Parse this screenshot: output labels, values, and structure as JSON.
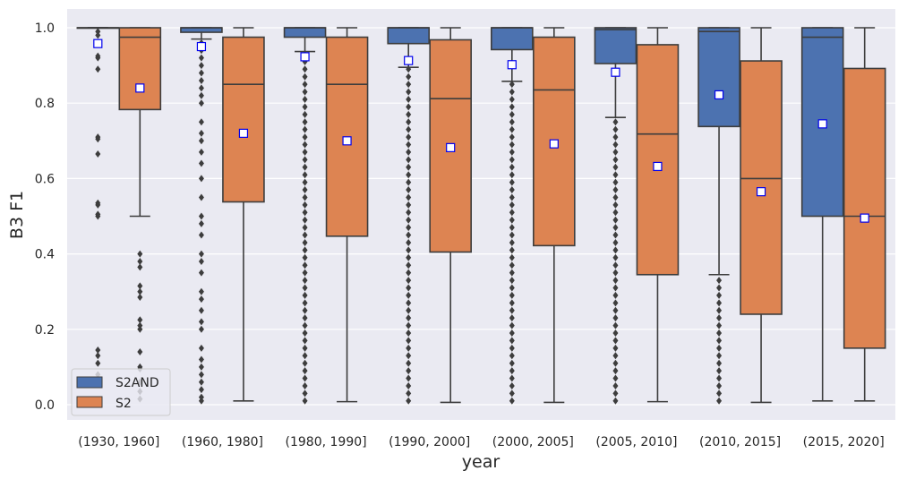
{
  "chart_data": {
    "type": "box",
    "xlabel": "year",
    "ylabel": "B3 F1",
    "ylim": [
      -0.04,
      1.04
    ],
    "yticks": [
      0.0,
      0.2,
      0.4,
      0.6,
      0.8,
      1.0
    ],
    "ytick_labels": [
      "0.0",
      "0.2",
      "0.4",
      "0.6",
      "0.8",
      "1.0"
    ],
    "grid": true,
    "legend_position": "lower-left",
    "categories": [
      "(1930, 1960]",
      "(1960, 1980]",
      "(1980, 1990]",
      "(1990, 2000]",
      "(2000, 2005]",
      "(2005, 2010]",
      "(2010, 2015]",
      "(2015, 2020]"
    ],
    "series": [
      {
        "name": "S2AND",
        "color": "#4c72b0",
        "boxes": [
          {
            "q1": 1.0,
            "median": 1.0,
            "q3": 1.0,
            "whisker_low": 1.0,
            "whisker_high": 1.0,
            "mean": 0.958,
            "outliers": [
              0.99,
              0.98,
              0.925,
              0.92,
              0.89,
              0.71,
              0.705,
              0.665,
              0.535,
              0.53,
              0.505,
              0.5,
              0.145,
              0.13,
              0.11,
              0.08
            ]
          },
          {
            "q1": 0.988,
            "median": 1.0,
            "q3": 1.0,
            "whisker_low": 0.97,
            "whisker_high": 1.0,
            "mean": 0.95,
            "outliers": [
              0.96,
              0.94,
              0.92,
              0.9,
              0.88,
              0.86,
              0.84,
              0.82,
              0.8,
              0.75,
              0.72,
              0.7,
              0.67,
              0.64,
              0.6,
              0.55,
              0.5,
              0.48,
              0.45,
              0.4,
              0.38,
              0.35,
              0.3,
              0.28,
              0.25,
              0.22,
              0.2,
              0.15,
              0.12,
              0.1,
              0.08,
              0.06,
              0.04,
              0.02,
              0.01
            ]
          },
          {
            "q1": 0.975,
            "median": 1.0,
            "q3": 1.0,
            "whisker_low": 0.937,
            "whisker_high": 1.0,
            "mean": 0.923,
            "outliers": [
              0.93,
              0.91,
              0.89,
              0.87,
              0.85,
              0.83,
              0.81,
              0.79,
              0.77,
              0.75,
              0.73,
              0.71,
              0.69,
              0.67,
              0.65,
              0.63,
              0.61,
              0.59,
              0.57,
              0.55,
              0.53,
              0.51,
              0.49,
              0.47,
              0.45,
              0.43,
              0.41,
              0.39,
              0.37,
              0.35,
              0.33,
              0.31,
              0.29,
              0.27,
              0.25,
              0.23,
              0.21,
              0.19,
              0.17,
              0.15,
              0.13,
              0.11,
              0.09,
              0.07,
              0.05,
              0.03,
              0.01
            ]
          },
          {
            "q1": 0.958,
            "median": 1.0,
            "q3": 1.0,
            "whisker_low": 0.895,
            "whisker_high": 1.0,
            "mean": 0.913,
            "outliers": [
              0.89,
              0.87,
              0.85,
              0.83,
              0.81,
              0.79,
              0.77,
              0.75,
              0.73,
              0.71,
              0.69,
              0.67,
              0.65,
              0.63,
              0.61,
              0.59,
              0.57,
              0.55,
              0.53,
              0.51,
              0.49,
              0.47,
              0.45,
              0.43,
              0.41,
              0.39,
              0.37,
              0.35,
              0.33,
              0.31,
              0.29,
              0.27,
              0.25,
              0.23,
              0.21,
              0.19,
              0.17,
              0.15,
              0.13,
              0.11,
              0.09,
              0.07,
              0.05,
              0.03,
              0.01
            ]
          },
          {
            "q1": 0.942,
            "median": 1.0,
            "q3": 1.0,
            "whisker_low": 0.858,
            "whisker_high": 1.0,
            "mean": 0.902,
            "outliers": [
              0.85,
              0.83,
              0.81,
              0.79,
              0.77,
              0.75,
              0.73,
              0.71,
              0.69,
              0.67,
              0.65,
              0.63,
              0.61,
              0.59,
              0.57,
              0.55,
              0.53,
              0.51,
              0.49,
              0.47,
              0.45,
              0.43,
              0.41,
              0.39,
              0.37,
              0.35,
              0.33,
              0.31,
              0.29,
              0.27,
              0.25,
              0.23,
              0.21,
              0.19,
              0.17,
              0.15,
              0.13,
              0.11,
              0.09,
              0.07,
              0.05,
              0.03,
              0.01
            ]
          },
          {
            "q1": 0.905,
            "median": 0.995,
            "q3": 1.0,
            "whisker_low": 0.762,
            "whisker_high": 1.0,
            "mean": 0.882,
            "outliers": [
              0.75,
              0.73,
              0.71,
              0.69,
              0.67,
              0.65,
              0.63,
              0.61,
              0.59,
              0.57,
              0.55,
              0.53,
              0.51,
              0.49,
              0.47,
              0.45,
              0.43,
              0.41,
              0.39,
              0.37,
              0.35,
              0.33,
              0.31,
              0.29,
              0.27,
              0.25,
              0.23,
              0.21,
              0.19,
              0.17,
              0.15,
              0.13,
              0.11,
              0.09,
              0.07,
              0.05,
              0.03,
              0.01
            ]
          },
          {
            "q1": 0.738,
            "median": 0.99,
            "q3": 1.0,
            "whisker_low": 0.345,
            "whisker_high": 1.0,
            "mean": 0.822,
            "outliers": [
              0.33,
              0.31,
              0.29,
              0.27,
              0.25,
              0.23,
              0.21,
              0.19,
              0.17,
              0.15,
              0.13,
              0.11,
              0.09,
              0.07,
              0.05,
              0.03,
              0.01
            ]
          },
          {
            "q1": 0.5,
            "median": 0.975,
            "q3": 1.0,
            "whisker_low": 0.01,
            "whisker_high": 1.0,
            "mean": 0.745,
            "outliers": []
          }
        ]
      },
      {
        "name": "S2",
        "color": "#dd8452",
        "boxes": [
          {
            "q1": 0.783,
            "median": 0.975,
            "q3": 1.0,
            "whisker_low": 0.5,
            "whisker_high": 1.0,
            "mean": 0.84,
            "outliers": [
              0.4,
              0.38,
              0.365,
              0.315,
              0.3,
              0.285,
              0.225,
              0.21,
              0.2,
              0.14,
              0.1,
              0.095,
              0.06,
              0.035,
              0.015
            ]
          },
          {
            "q1": 0.538,
            "median": 0.85,
            "q3": 0.975,
            "whisker_low": 0.01,
            "whisker_high": 1.0,
            "mean": 0.72,
            "outliers": []
          },
          {
            "q1": 0.447,
            "median": 0.85,
            "q3": 0.975,
            "whisker_low": 0.008,
            "whisker_high": 1.0,
            "mean": 0.7,
            "outliers": []
          },
          {
            "q1": 0.405,
            "median": 0.812,
            "q3": 0.968,
            "whisker_low": 0.006,
            "whisker_high": 1.0,
            "mean": 0.682,
            "outliers": []
          },
          {
            "q1": 0.422,
            "median": 0.835,
            "q3": 0.975,
            "whisker_low": 0.006,
            "whisker_high": 1.0,
            "mean": 0.692,
            "outliers": []
          },
          {
            "q1": 0.345,
            "median": 0.718,
            "q3": 0.955,
            "whisker_low": 0.008,
            "whisker_high": 1.0,
            "mean": 0.632,
            "outliers": []
          },
          {
            "q1": 0.24,
            "median": 0.6,
            "q3": 0.912,
            "whisker_low": 0.006,
            "whisker_high": 1.0,
            "mean": 0.565,
            "outliers": []
          },
          {
            "q1": 0.15,
            "median": 0.5,
            "q3": 0.892,
            "whisker_low": 0.01,
            "whisker_high": 1.0,
            "mean": 0.495,
            "outliers": []
          }
        ]
      }
    ]
  }
}
